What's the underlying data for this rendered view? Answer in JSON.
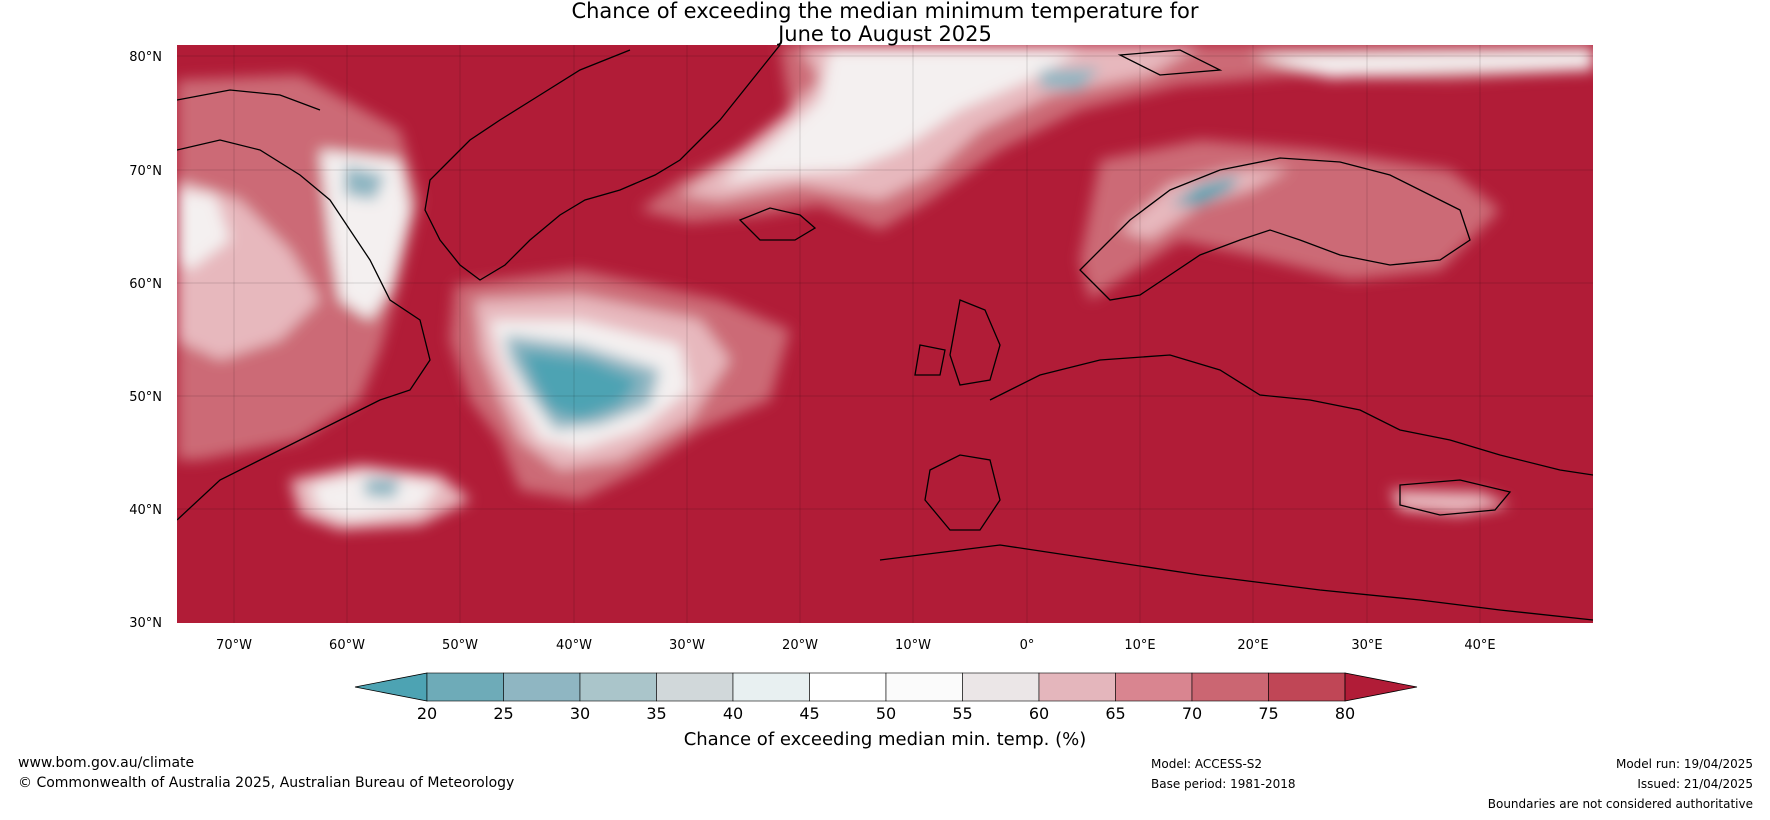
{
  "title": {
    "line1": "Chance of exceeding the median minimum temperature for",
    "line2": "June to August 2025"
  },
  "map": {
    "lat_labels": [
      "80°N",
      "70°N",
      "60°N",
      "50°N",
      "40°N",
      "30°N"
    ],
    "lon_labels": [
      "70°W",
      "60°W",
      "50°W",
      "40°W",
      "30°W",
      "20°W",
      "10°W",
      "0°",
      "10°E",
      "20°E",
      "30°E",
      "40°E"
    ],
    "extent": {
      "lon_min": -75,
      "lon_max": 50,
      "lat_min": 30,
      "lat_max": 81
    }
  },
  "colorbar": {
    "ticks": [
      "20",
      "25",
      "30",
      "35",
      "40",
      "45",
      "50",
      "55",
      "60",
      "65",
      "70",
      "75",
      "80"
    ],
    "colors": [
      "#4da3b3",
      "#6eabb8",
      "#8fb6c2",
      "#aac5ca",
      "#d1d8da",
      "#e8f0f1",
      "#ffffff",
      "#fbfbfb",
      "#ebe6e7",
      "#e4b6bc",
      "#d98590",
      "#cb6672",
      "#c04656",
      "#b11c37"
    ],
    "label": "Chance of exceeding median min. temp. (%)"
  },
  "colors": {
    "high": "#b11c37",
    "mid_high": "#cc6b76",
    "light": "#e7b8bd",
    "neutral": "#f4f0f0",
    "low": "#4da3b3",
    "low_mid": "#8fb6c2"
  },
  "footer": {
    "website": "www.bom.gov.au/climate",
    "copyright": "© Commonwealth of Australia 2025, Australian Bureau of Meteorology",
    "model": "Model: ACCESS-S2",
    "base_period": "Base period: 1981-2018",
    "model_run": "Model run: 19/04/2025",
    "issued": "Issued: 21/04/2025",
    "disclaimer": "Boundaries are not considered authoritative"
  }
}
